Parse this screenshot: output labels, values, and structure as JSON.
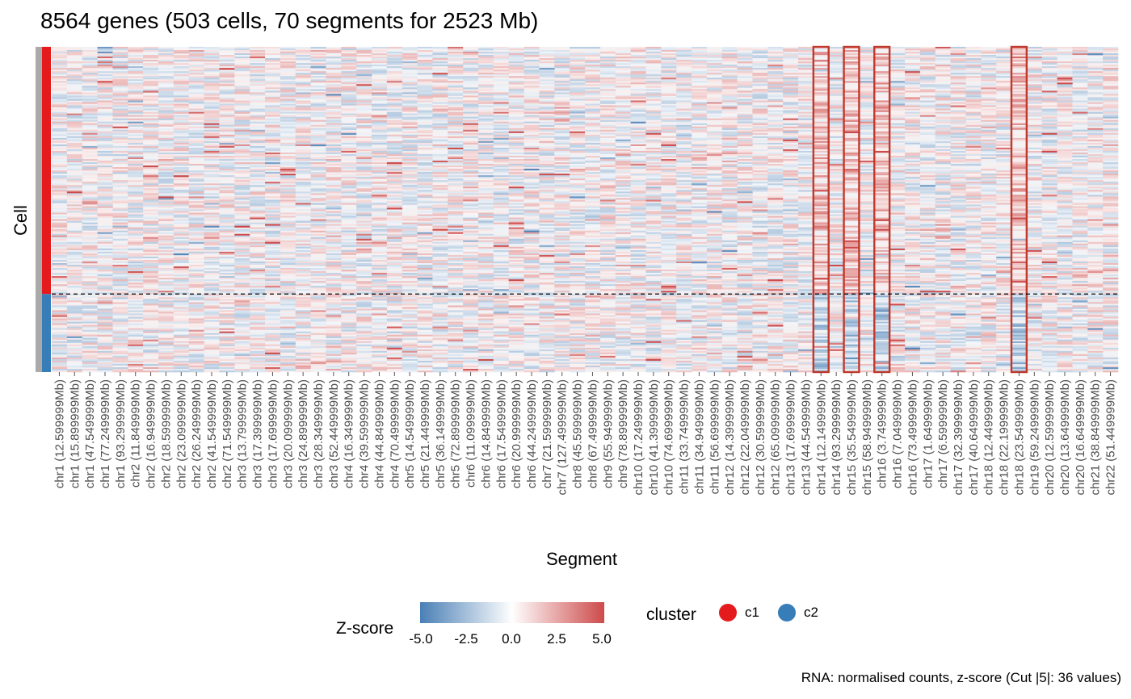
{
  "title": "8564 genes (503 cells, 70 segments for 2523 Mb)",
  "caption": "RNA: normalised counts, z-score (Cut |5|: 36 values)",
  "colors": {
    "low": "#4a7fb5",
    "mid": "#ffffff",
    "high": "#cd4a4a",
    "c1": "#e41a1c",
    "c2": "#377eb8",
    "highlight": "#c0392b",
    "side_bar": "#aaaaaa"
  },
  "chart_data": {
    "type": "heatmap",
    "title": "8564 genes (503 cells, 70 segments for 2523 Mb)",
    "xlabel": "Segment",
    "ylabel": "Cell",
    "segments": [
      "chr1 (12.599999Mb)",
      "chr1 (15.899999Mb)",
      "chr1 (47.549999Mb)",
      "chr1 (77.249999Mb)",
      "chr1 (93.299999Mb)",
      "chr2 (11.849999Mb)",
      "chr2 (16.949999Mb)",
      "chr2 (18.599999Mb)",
      "chr2 (23.099999Mb)",
      "chr2 (26.249999Mb)",
      "chr2 (41.549999Mb)",
      "chr2 (71.549999Mb)",
      "chr3 (13.799999Mb)",
      "chr3 (17.399999Mb)",
      "chr3 (17.699999Mb)",
      "chr3 (20.099999Mb)",
      "chr3 (24.899999Mb)",
      "chr3 (28.349999Mb)",
      "chr3 (52.449999Mb)",
      "chr4 (16.349999Mb)",
      "chr4 (39.599999Mb)",
      "chr4 (44.849999Mb)",
      "chr4 (70.499999Mb)",
      "chr5 (14.549999Mb)",
      "chr5 (21.449999Mb)",
      "chr5 (36.149999Mb)",
      "chr5 (72.899999Mb)",
      "chr6 (11.099999Mb)",
      "chr6 (14.849999Mb)",
      "chr6 (17.549999Mb)",
      "chr6 (20.999999Mb)",
      "chr6 (44.249999Mb)",
      "chr7 (21.599999Mb)",
      "chr7 (127.499999Mb)",
      "chr8 (45.599999Mb)",
      "chr8 (67.499999Mb)",
      "chr9 (55.949999Mb)",
      "chr9 (78.899999Mb)",
      "chr10 (17.249999Mb)",
      "chr10 (41.399999Mb)",
      "chr10 (74.699999Mb)",
      "chr11 (33.749999Mb)",
      "chr11 (34.949999Mb)",
      "chr11 (56.699999Mb)",
      "chr12 (14.399999Mb)",
      "chr12 (22.049999Mb)",
      "chr12 (30.599999Mb)",
      "chr12 (65.099999Mb)",
      "chr13 (17.699999Mb)",
      "chr13 (44.549999Mb)",
      "chr14 (12.149999Mb)",
      "chr14 (93.299999Mb)",
      "chr15 (35.549999Mb)",
      "chr15 (58.949999Mb)",
      "chr16 (3.749999Mb)",
      "chr16 (7.049999Mb)",
      "chr16 (73.499999Mb)",
      "chr17 (1.649999Mb)",
      "chr17 (6.599999Mb)",
      "chr17 (32.399999Mb)",
      "chr17 (40.649999Mb)",
      "chr18 (12.449999Mb)",
      "chr18 (22.199999Mb)",
      "chr18 (23.549999Mb)",
      "chr19 (59.249999Mb)",
      "chr20 (12.599999Mb)",
      "chr20 (13.649999Mb)",
      "chr20 (16.649999Mb)",
      "chr21 (38.849999Mb)",
      "chr22 (51.449999Mb)"
    ],
    "cells": 503,
    "clusters": [
      {
        "name": "c1",
        "fraction": 0.76
      },
      {
        "name": "c2",
        "fraction": 0.24
      }
    ],
    "highlighted_segments": [
      50,
      52,
      54,
      63
    ],
    "color_scale": {
      "title": "Z-score",
      "range": [
        -5.0,
        5.0
      ],
      "ticks": [
        "-5.0",
        "-2.5",
        "0.0",
        "2.5",
        "5.0"
      ]
    },
    "legend": {
      "title": "cluster",
      "entries": [
        "c1",
        "c2"
      ],
      "position": "bottom"
    }
  }
}
